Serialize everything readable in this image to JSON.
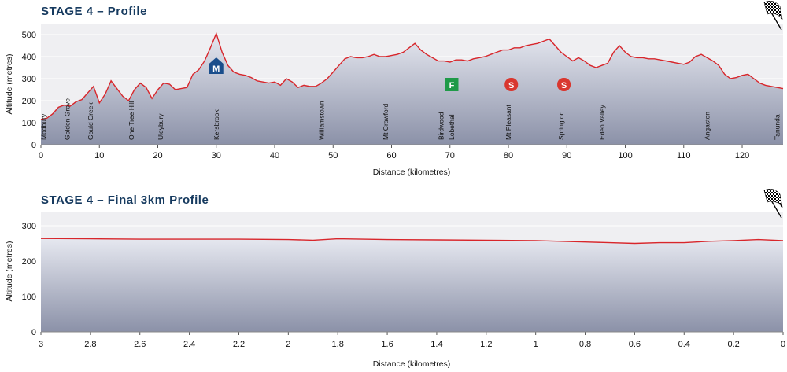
{
  "chart_data": [
    {
      "type": "area",
      "title": "STAGE 4 – Profile",
      "xlabel": "Distance (kilometres)",
      "ylabel": "Altitude (metres)",
      "xlim": [
        0,
        127
      ],
      "ylim": [
        0,
        550
      ],
      "x_ticks": [
        0,
        10,
        20,
        30,
        40,
        50,
        60,
        70,
        80,
        90,
        100,
        110,
        120
      ],
      "y_ticks": [
        0,
        100,
        200,
        300,
        400,
        500
      ],
      "x_tick_labels": [
        "0",
        "10",
        "20",
        "30",
        "40",
        "50",
        "60",
        "70",
        "80",
        "90",
        "100",
        "110",
        "120"
      ],
      "y_tick_labels": [
        "0",
        "100",
        "200",
        "300",
        "400",
        "500"
      ],
      "profile": {
        "x": [
          0,
          1,
          2,
          3,
          4,
          5,
          6,
          7,
          8,
          9,
          10,
          11,
          12,
          13,
          14,
          15,
          16,
          17,
          18,
          19,
          20,
          21,
          22,
          23,
          24,
          25,
          26,
          27,
          28,
          29,
          30,
          31,
          32,
          33,
          34,
          35,
          36,
          37,
          38,
          39,
          40,
          41,
          42,
          43,
          44,
          45,
          46,
          47,
          48,
          49,
          50,
          51,
          52,
          53,
          54,
          55,
          56,
          57,
          58,
          59,
          60,
          61,
          62,
          63,
          64,
          65,
          66,
          67,
          68,
          69,
          70,
          71,
          72,
          73,
          74,
          75,
          76,
          77,
          78,
          79,
          80,
          81,
          82,
          83,
          84,
          85,
          86,
          87,
          88,
          89,
          90,
          91,
          92,
          93,
          94,
          95,
          96,
          97,
          98,
          99,
          100,
          101,
          102,
          103,
          104,
          105,
          106,
          107,
          108,
          109,
          110,
          111,
          112,
          113,
          114,
          115,
          116,
          117,
          118,
          119,
          120,
          121,
          122,
          123,
          124,
          125,
          126,
          127
        ],
        "y": [
          115,
          120,
          140,
          170,
          180,
          175,
          195,
          205,
          235,
          265,
          190,
          230,
          290,
          255,
          220,
          200,
          250,
          280,
          260,
          210,
          250,
          280,
          275,
          250,
          255,
          260,
          320,
          340,
          380,
          440,
          505,
          420,
          360,
          330,
          320,
          315,
          305,
          290,
          285,
          280,
          285,
          270,
          300,
          285,
          260,
          270,
          265,
          265,
          280,
          300,
          330,
          360,
          390,
          400,
          395,
          395,
          400,
          410,
          400,
          400,
          405,
          410,
          420,
          440,
          460,
          430,
          410,
          395,
          380,
          380,
          375,
          385,
          385,
          380,
          390,
          395,
          400,
          410,
          420,
          430,
          430,
          440,
          440,
          450,
          455,
          460,
          470,
          480,
          450,
          420,
          400,
          380,
          395,
          380,
          360,
          350,
          360,
          370,
          420,
          450,
          420,
          400,
          395,
          395,
          390,
          390,
          385,
          380,
          375,
          370,
          365,
          375,
          400,
          410,
          395,
          380,
          360,
          320,
          300,
          305,
          315,
          320,
          300,
          280,
          270,
          265,
          260,
          255
        ]
      },
      "towns": [
        {
          "name": "Modbury",
          "km": 0.5
        },
        {
          "name": "Golden Grove",
          "km": 4.5
        },
        {
          "name": "Gould Creek",
          "km": 8.5
        },
        {
          "name": "One Tree Hill",
          "km": 15.5
        },
        {
          "name": "Uleybury",
          "km": 20.5
        },
        {
          "name": "Kersbrook",
          "km": 30
        },
        {
          "name": "Williamstown",
          "km": 48
        },
        {
          "name": "Mt Crawford",
          "km": 59
        },
        {
          "name": "Birdwood",
          "km": 68.5
        },
        {
          "name": "Lobethal",
          "km": 70.3
        },
        {
          "name": "Mt Pleasant",
          "km": 80
        },
        {
          "name": "Springton",
          "km": 89
        },
        {
          "name": "Eden Valley",
          "km": 96
        },
        {
          "name": "Angaston",
          "km": 114
        },
        {
          "name": "Tanunda",
          "km": 126
        }
      ],
      "markers": [
        {
          "label": "M",
          "type": "mountain",
          "km": 30,
          "color": "#1a4e8c"
        },
        {
          "label": "F",
          "type": "feed",
          "km": 70.3,
          "color": "#1f9a48"
        },
        {
          "label": "S",
          "type": "sprint",
          "km": 80.5,
          "color": "#d9372f"
        },
        {
          "label": "S",
          "type": "sprint",
          "km": 89.5,
          "color": "#d9372f"
        }
      ],
      "colors": {
        "line": "#d8262b",
        "fill_top": "#e6e8f0",
        "fill_bottom": "#8b91a8",
        "plot_bg": "#efeff2"
      },
      "grid": "horizontal",
      "finish_flag": "chequered-flag-icon"
    },
    {
      "type": "area",
      "title": "STAGE 4 – Final 3km Profile",
      "xlabel": "Distance (kilometres)",
      "ylabel": "Altitude (metres)",
      "xlim": [
        3,
        0
      ],
      "ylim": [
        0,
        340
      ],
      "x_ticks": [
        3,
        2.8,
        2.6,
        2.4,
        2.2,
        2,
        1.8,
        1.6,
        1.4,
        1.2,
        1,
        0.8,
        0.6,
        0.4,
        0.2,
        0
      ],
      "y_ticks": [
        0,
        100,
        200,
        300
      ],
      "x_tick_labels": [
        "3",
        "2.8",
        "2.6",
        "2.4",
        "2.2",
        "2",
        "1.8",
        "1.6",
        "1.4",
        "1.2",
        "1",
        "0.8",
        "0.6",
        "0.4",
        "0.2",
        "0"
      ],
      "y_tick_labels": [
        "0",
        "100",
        "200",
        "300"
      ],
      "profile": {
        "x": [
          3,
          2.8,
          2.6,
          2.4,
          2.2,
          2,
          1.9,
          1.8,
          1.6,
          1.4,
          1.2,
          1,
          0.8,
          0.7,
          0.6,
          0.5,
          0.4,
          0.3,
          0.2,
          0.1,
          0
        ],
        "y": [
          264,
          263,
          262,
          262,
          262,
          261,
          259,
          263,
          261,
          260,
          259,
          258,
          254,
          252,
          250,
          252,
          252,
          256,
          258,
          261,
          258
        ]
      },
      "colors": {
        "line": "#d8262b",
        "fill_top": "#e6e8f0",
        "fill_bottom": "#8b91a8",
        "plot_bg": "#efeff2"
      },
      "grid": "horizontal",
      "finish_flag": "chequered-flag-icon"
    }
  ]
}
